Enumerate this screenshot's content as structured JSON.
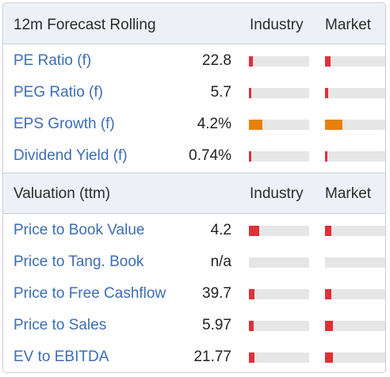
{
  "colors": {
    "red": "#e0303a",
    "orange": "#e8800d",
    "link": "#3d6db5",
    "header_bg": "#edf1f7",
    "track": "#e6e6e6"
  },
  "sections": [
    {
      "title": "12m Forecast Rolling",
      "col_industry": "Industry",
      "col_market": "Market",
      "rows": [
        {
          "label": "PE Ratio (f)",
          "value": "22.8",
          "industry_fill": 0.07,
          "market_fill": 0.09,
          "color": "red"
        },
        {
          "label": "PEG Ratio (f)",
          "value": "5.7",
          "industry_fill": 0.04,
          "market_fill": 0.05,
          "color": "red"
        },
        {
          "label": "EPS Growth (f)",
          "value": "4.2%",
          "industry_fill": 0.23,
          "market_fill": 0.29,
          "color": "orange"
        },
        {
          "label": "Dividend Yield (f)",
          "value": "0.74%",
          "industry_fill": 0.03,
          "market_fill": 0.03,
          "color": "red"
        }
      ]
    },
    {
      "title": "Valuation (ttm)",
      "col_industry": "Industry",
      "col_market": "Market",
      "rows": [
        {
          "label": "Price to Book Value",
          "value": "4.2",
          "industry_fill": 0.17,
          "market_fill": 0.11,
          "color": "red"
        },
        {
          "label": "Price to Tang. Book",
          "value": "n/a",
          "industry_fill": 0,
          "market_fill": 0,
          "color": "red"
        },
        {
          "label": "Price to Free Cashflow",
          "value": "39.7",
          "industry_fill": 0.09,
          "market_fill": 0.11,
          "color": "red"
        },
        {
          "label": "Price to Sales",
          "value": "5.97",
          "industry_fill": 0.08,
          "market_fill": 0.13,
          "color": "red"
        },
        {
          "label": "EV to EBITDA",
          "value": "21.77",
          "industry_fill": 0.09,
          "market_fill": 0.13,
          "color": "red"
        }
      ]
    }
  ]
}
